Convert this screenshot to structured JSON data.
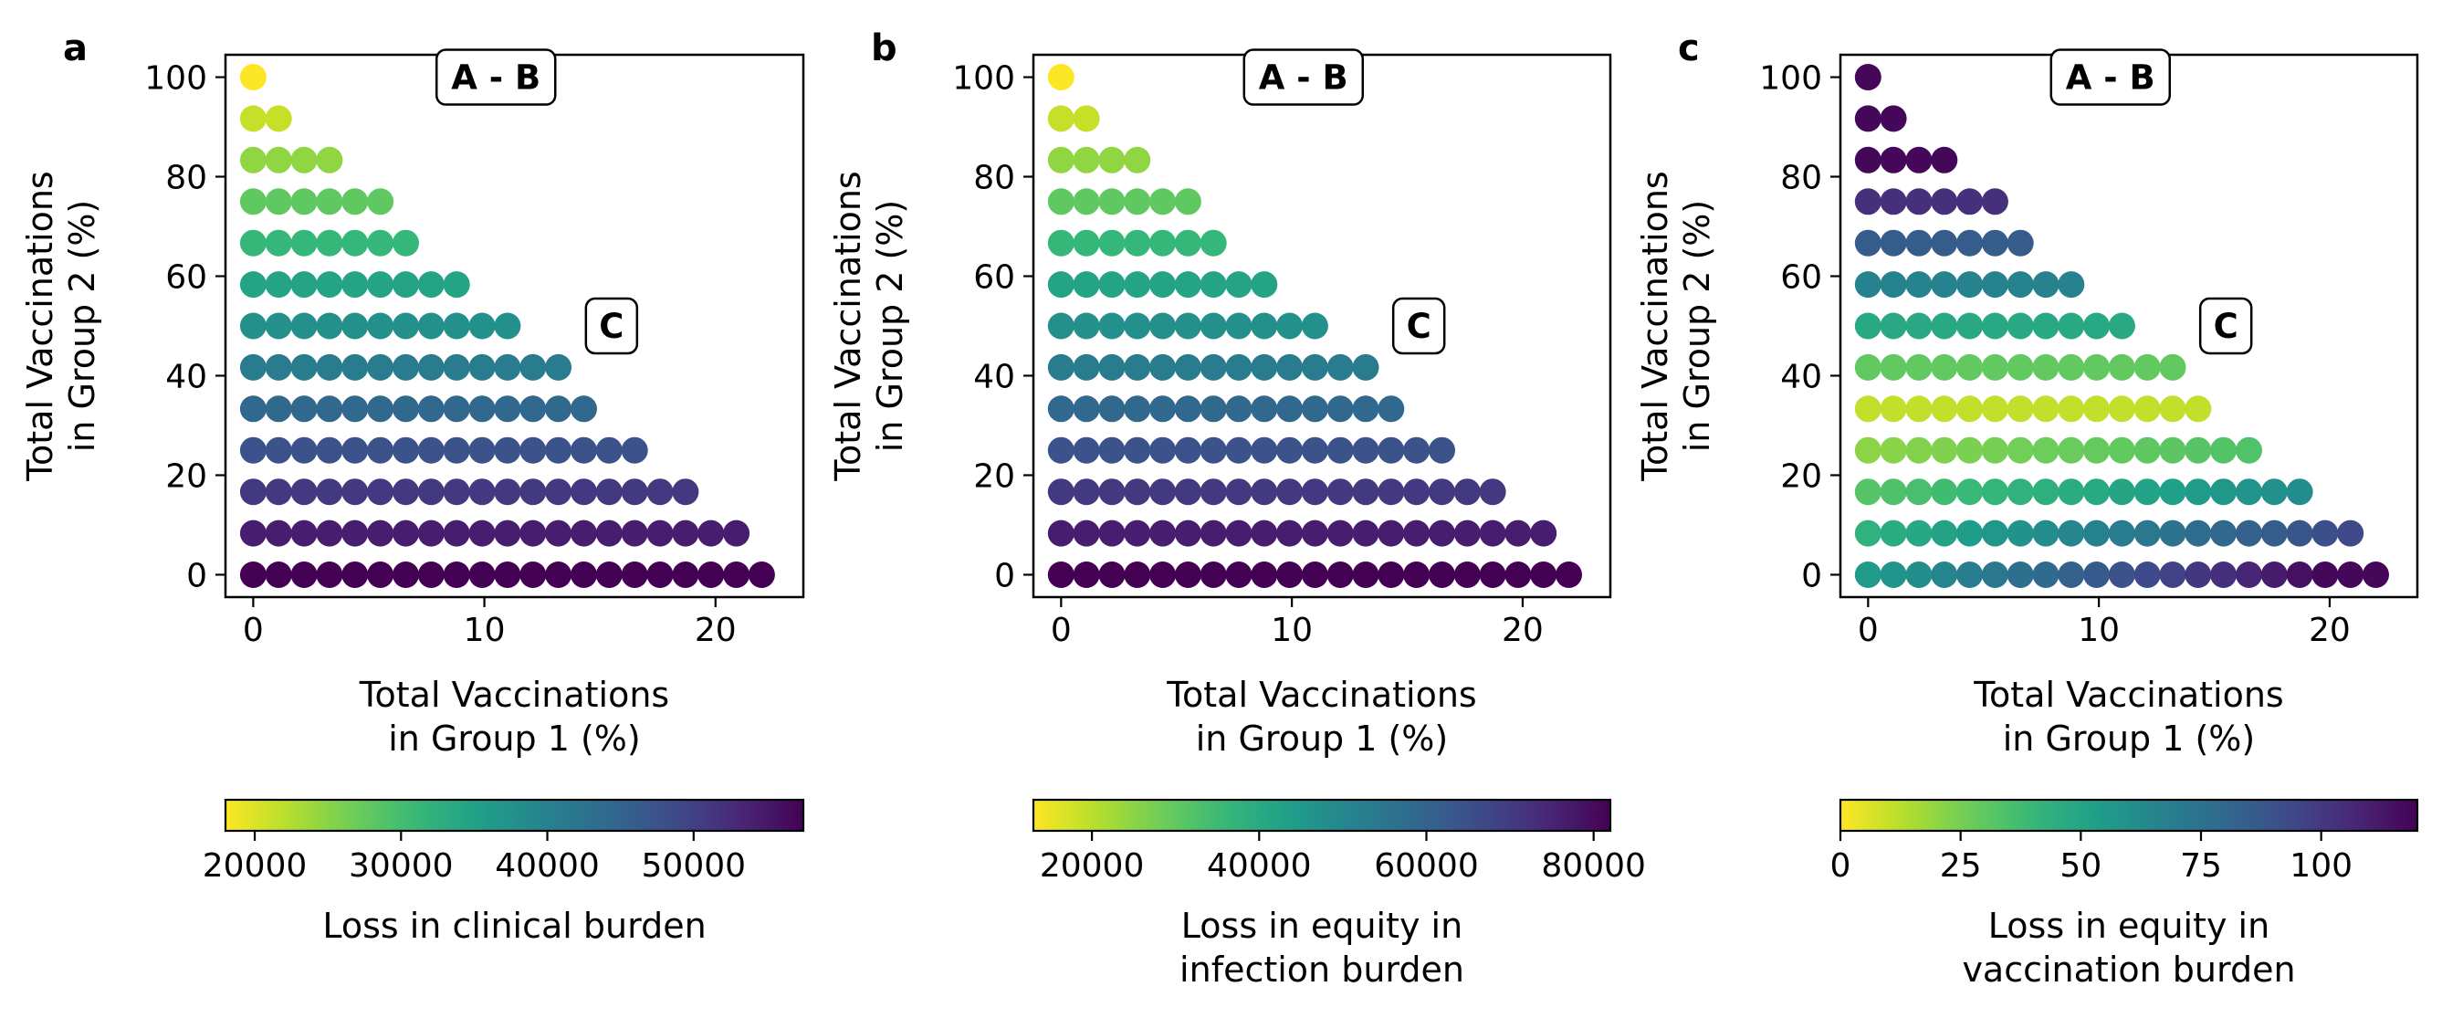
{
  "chart_data": [
    {
      "panel_label": "a",
      "type": "scatter",
      "xlabel": [
        "Total Vaccinations",
        "in Group 1 (%)"
      ],
      "ylabel": [
        "Total Vaccinations",
        "in Group 2 (%)"
      ],
      "x_ticks": [
        0,
        10,
        20
      ],
      "y_ticks": [
        0,
        20,
        40,
        60,
        80,
        100
      ],
      "xlim": [
        -1.2,
        23.8
      ],
      "ylim": [
        -4.5,
        104.5
      ],
      "grid": false,
      "color_map": "viridis",
      "color_reversed": true,
      "points": "triangular grid: y rows 0, 8.33, ..., 100 (13 rows); x = 0, 1.1, 2.2, ... up to 23 - y*0.23; color follows y",
      "color_range": [
        18000,
        57500
      ],
      "colorbar": {
        "label": [
          "Loss in clinical burden"
        ],
        "ticks": [
          "20000",
          "30000",
          "40000",
          "50000"
        ],
        "tick_values": [
          20000,
          30000,
          40000,
          50000
        ]
      },
      "annotations": [
        {
          "text": "A - B",
          "x": 10.5,
          "y": 100
        },
        {
          "text": "C",
          "x": 15.5,
          "y": 50
        }
      ]
    },
    {
      "panel_label": "b",
      "type": "scatter",
      "xlabel": [
        "Total Vaccinations",
        "in Group 1 (%)"
      ],
      "ylabel": [
        "Total Vaccinations",
        "in Group 2 (%)"
      ],
      "x_ticks": [
        0,
        10,
        20
      ],
      "y_ticks": [
        0,
        20,
        40,
        60,
        80,
        100
      ],
      "xlim": [
        -1.2,
        23.8
      ],
      "ylim": [
        -4.5,
        104.5
      ],
      "grid": false,
      "color_map": "viridis",
      "color_reversed": true,
      "color_range": [
        13000,
        82000
      ],
      "colorbar": {
        "label": [
          "Loss in equity in",
          "infection burden"
        ],
        "ticks": [
          "20000",
          "40000",
          "60000",
          "80000"
        ],
        "tick_values": [
          20000,
          40000,
          60000,
          80000
        ]
      },
      "annotations": [
        {
          "text": "A - B",
          "x": 10.5,
          "y": 100
        },
        {
          "text": "C",
          "x": 15.5,
          "y": 50
        }
      ]
    },
    {
      "panel_label": "c",
      "type": "scatter",
      "xlabel": [
        "Total Vaccinations",
        "in Group 1 (%)"
      ],
      "ylabel": [
        "Total Vaccinations",
        "in Group 2 (%)"
      ],
      "x_ticks": [
        0,
        10,
        20
      ],
      "y_ticks": [
        0,
        20,
        40,
        60,
        80,
        100
      ],
      "xlim": [
        -1.2,
        23.8
      ],
      "ylim": [
        -4.5,
        104.5
      ],
      "grid": false,
      "color_map": "viridis",
      "color_reversed": true,
      "color_range": [
        0,
        120
      ],
      "colorbar": {
        "label": [
          "Loss in equity in",
          "vaccination burden"
        ],
        "ticks": [
          "0",
          "25",
          "50",
          "75",
          "100"
        ],
        "tick_values": [
          0,
          25,
          50,
          75,
          100
        ]
      },
      "annotations": [
        {
          "text": "A - B",
          "x": 10.5,
          "y": 100
        },
        {
          "text": "C",
          "x": 15.5,
          "y": 50
        }
      ]
    }
  ]
}
